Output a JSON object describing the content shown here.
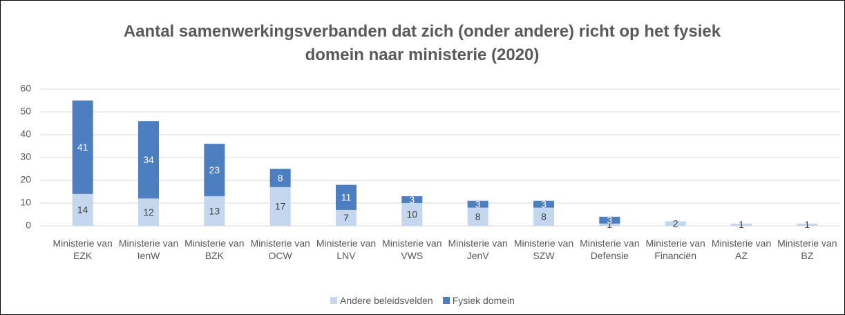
{
  "chart_data": {
    "type": "stacked_bar",
    "title": "Aantal samenwerkingsverbanden dat zich (onder andere) richt op het fysiek domein naar ministerie (2020)",
    "categories": [
      "Ministerie van EZK",
      "Ministerie van IenW",
      "Ministerie van BZK",
      "Ministerie van OCW",
      "Ministerie van LNV",
      "Ministerie van VWS",
      "Ministerie van JenV",
      "Ministerie van SZW",
      "Ministerie van Defensie",
      "Ministerie van Financiën",
      "Ministerie van AZ",
      "Ministerie van BZ"
    ],
    "series": [
      {
        "name": "Andere beleidsvelden",
        "color": "#c5d7ef",
        "label_color": "#404040",
        "values": [
          14,
          12,
          13,
          17,
          7,
          10,
          8,
          8,
          1,
          2,
          1,
          1
        ]
      },
      {
        "name": "Fysiek domein",
        "color": "#4d7ebf",
        "label_color": "#ffffff",
        "values": [
          41,
          34,
          23,
          8,
          11,
          3,
          3,
          3,
          3,
          null,
          null,
          null
        ]
      }
    ],
    "ylim": [
      0,
      60
    ],
    "yticks": [
      0,
      10,
      20,
      30,
      40,
      50,
      60
    ],
    "grid": true,
    "legend": "bottom"
  }
}
